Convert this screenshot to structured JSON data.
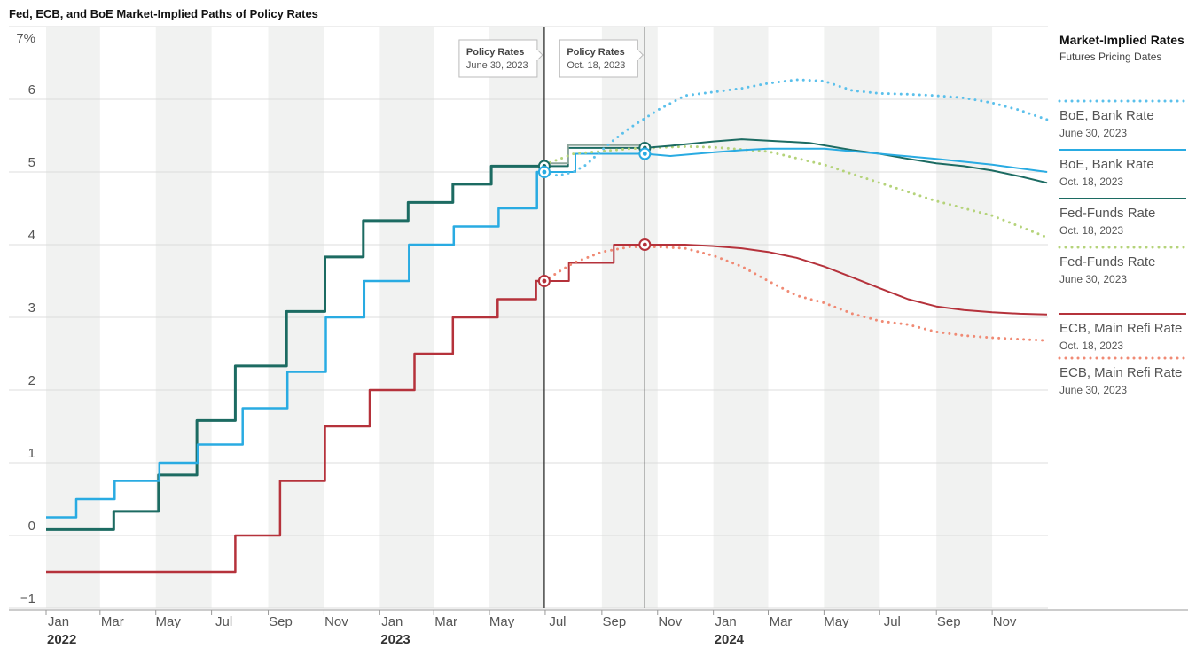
{
  "chart_data": {
    "type": "line",
    "title": "Fed, ECB, and BoE Market-Implied Paths of Policy Rates",
    "y_ticks": [
      "7%",
      "6",
      "5",
      "4",
      "3",
      "2",
      "1",
      "0",
      "−1"
    ],
    "y_values": [
      7,
      6,
      5,
      4,
      3,
      2,
      1,
      0,
      -1
    ],
    "ylim": [
      -1,
      7
    ],
    "x_month_labels": [
      "Jan",
      "Mar",
      "May",
      "Jul",
      "Sep",
      "Nov",
      "Jan",
      "Mar",
      "May",
      "Jul",
      "Sep",
      "Nov",
      "Jan",
      "Mar",
      "May",
      "Jul",
      "Sep",
      "Nov"
    ],
    "x_month_positions": [
      "2022-01",
      "2022-03",
      "2022-05",
      "2022-07",
      "2022-09",
      "2022-11",
      "2023-01",
      "2023-03",
      "2023-05",
      "2023-07",
      "2023-09",
      "2023-11",
      "2024-01",
      "2024-03",
      "2024-05",
      "2024-07",
      "2024-09",
      "2024-11"
    ],
    "x_year_labels": [
      "2022",
      "2023",
      "2024"
    ],
    "x_year_positions": [
      "2022-01",
      "2023-01",
      "2024-01"
    ],
    "xlim": [
      "2022-01",
      "2024-12"
    ],
    "annotations": [
      {
        "title": "Policy Rates",
        "date": "June 30, 2023",
        "x": "2023-06-30"
      },
      {
        "title": "Policy Rates",
        "date": "Oct. 18, 2023",
        "x": "2023-10-18"
      }
    ],
    "legend": {
      "title": "Market-Implied Rates",
      "subtitle": "Futures Pricing Dates",
      "placement": "right",
      "entries": [
        {
          "name": "BoE, Bank Rate",
          "date": "June 30, 2023",
          "color": "#5bc0eb",
          "dotted": true
        },
        {
          "name": "BoE, Bank Rate",
          "date": "Oct. 18, 2023",
          "color": "#29abe2",
          "dotted": false
        },
        {
          "name": "Fed-Funds Rate",
          "date": "Oct. 18, 2023",
          "color": "#1c6b62",
          "dotted": false
        },
        {
          "name": "Fed-Funds Rate",
          "date": "June 30, 2023",
          "color": "#b5d37a",
          "dotted": true
        },
        {
          "name": "ECB, Main Refi Rate",
          "date": "Oct. 18, 2023",
          "color": "#b5323b",
          "dotted": false
        },
        {
          "name": "ECB, Main Refi Rate",
          "date": "June 30, 2023",
          "color": "#f08a74",
          "dotted": true
        }
      ]
    },
    "series": [
      {
        "id": "fed_hist",
        "color": "#1c6b62",
        "width": 3,
        "dotted": false,
        "step": true,
        "x": [
          "2022-01-01",
          "2022-03-16",
          "2022-05-04",
          "2022-06-15",
          "2022-07-27",
          "2022-09-21",
          "2022-11-02",
          "2022-12-14",
          "2023-02-01",
          "2023-03-22",
          "2023-05-03",
          "2023-06-30"
        ],
        "y": [
          0.08,
          0.33,
          0.83,
          1.58,
          2.33,
          3.08,
          3.83,
          4.33,
          4.58,
          4.83,
          5.08,
          5.08
        ]
      },
      {
        "id": "boe_hist",
        "color": "#29abe2",
        "width": 2.5,
        "dotted": false,
        "step": true,
        "x": [
          "2022-01-01",
          "2022-02-03",
          "2022-03-17",
          "2022-05-05",
          "2022-06-16",
          "2022-08-04",
          "2022-09-22",
          "2022-11-03",
          "2022-12-15",
          "2023-02-02",
          "2023-03-23",
          "2023-05-11",
          "2023-06-22",
          "2023-06-30"
        ],
        "y": [
          0.25,
          0.5,
          0.75,
          1.0,
          1.25,
          1.75,
          2.25,
          3.0,
          3.5,
          4.0,
          4.25,
          4.5,
          5.0,
          5.0
        ]
      },
      {
        "id": "ecb_hist",
        "color": "#b5323b",
        "width": 2.5,
        "dotted": false,
        "step": true,
        "x": [
          "2022-01-01",
          "2022-07-27",
          "2022-09-14",
          "2022-11-02",
          "2022-12-21",
          "2023-02-08",
          "2023-03-22",
          "2023-05-10",
          "2023-06-21",
          "2023-06-30"
        ],
        "y": [
          -0.5,
          0.0,
          0.75,
          1.5,
          2.0,
          2.5,
          3.0,
          3.25,
          3.5,
          3.5
        ]
      },
      {
        "id": "fed_oct_hist",
        "color": "#1c6b62",
        "width": 2,
        "dotted": false,
        "step": true,
        "x": [
          "2023-06-30",
          "2023-07-26",
          "2023-10-18"
        ],
        "y": [
          5.08,
          5.33,
          5.33
        ]
      },
      {
        "id": "fed_gray",
        "color": "#8ea69c",
        "width": 2,
        "dotted": false,
        "step": true,
        "x": [
          "2023-06-30",
          "2023-07-26",
          "2023-10-18"
        ],
        "y": [
          5.12,
          5.37,
          5.37
        ]
      },
      {
        "id": "boe_oct_hist",
        "color": "#29abe2",
        "width": 2,
        "dotted": false,
        "step": true,
        "x": [
          "2023-06-30",
          "2023-08-03",
          "2023-10-18"
        ],
        "y": [
          5.0,
          5.25,
          5.25
        ]
      },
      {
        "id": "ecb_oct_hist",
        "color": "#b5323b",
        "width": 2,
        "dotted": false,
        "step": true,
        "x": [
          "2023-06-30",
          "2023-07-27",
          "2023-09-14",
          "2023-10-18"
        ],
        "y": [
          3.5,
          3.75,
          4.0,
          4.0
        ]
      },
      {
        "id": "boe_jun",
        "color": "#5bc0eb",
        "width": 3,
        "dotted": true,
        "step": false,
        "x": [
          "2023-06-30",
          "2023-07-15",
          "2023-08-01",
          "2023-08-15",
          "2023-09-01",
          "2023-09-15",
          "2023-10-01",
          "2023-11-01",
          "2023-12-01",
          "2024-01-01",
          "2024-02-01",
          "2024-03-01",
          "2024-04-01",
          "2024-05-01",
          "2024-06-01",
          "2024-07-01",
          "2024-08-01",
          "2024-09-01",
          "2024-10-01",
          "2024-11-01",
          "2024-12-01",
          "2024-12-31"
        ],
        "y": [
          5.0,
          4.95,
          5.0,
          5.1,
          5.3,
          5.45,
          5.6,
          5.85,
          6.05,
          6.1,
          6.15,
          6.22,
          6.27,
          6.25,
          6.12,
          6.08,
          6.07,
          6.05,
          6.02,
          5.95,
          5.85,
          5.72
        ]
      },
      {
        "id": "fed_jun",
        "color": "#b5d37a",
        "width": 3,
        "dotted": true,
        "step": false,
        "x": [
          "2023-06-30",
          "2023-08-01",
          "2023-10-01",
          "2023-12-01",
          "2024-01-01",
          "2024-03-01",
          "2024-05-01",
          "2024-07-01",
          "2024-09-01",
          "2024-11-01",
          "2024-12-31"
        ],
        "y": [
          5.1,
          5.25,
          5.32,
          5.35,
          5.34,
          5.28,
          5.1,
          4.85,
          4.6,
          4.4,
          4.1
        ]
      },
      {
        "id": "ecb_jun",
        "color": "#f08a74",
        "width": 3,
        "dotted": true,
        "step": false,
        "x": [
          "2023-06-30",
          "2023-07-15",
          "2023-08-01",
          "2023-09-01",
          "2023-10-01",
          "2023-11-01",
          "2023-12-01",
          "2024-01-01",
          "2024-02-01",
          "2024-03-01",
          "2024-04-01",
          "2024-05-01",
          "2024-06-01",
          "2024-07-01",
          "2024-08-01",
          "2024-09-01",
          "2024-10-01",
          "2024-11-01",
          "2024-12-01",
          "2024-12-31"
        ],
        "y": [
          3.5,
          3.62,
          3.75,
          3.9,
          3.97,
          3.97,
          3.95,
          3.85,
          3.7,
          3.5,
          3.3,
          3.2,
          3.05,
          2.95,
          2.9,
          2.8,
          2.75,
          2.72,
          2.7,
          2.68
        ]
      },
      {
        "id": "fed_oct",
        "color": "#1c6b62",
        "width": 2,
        "dotted": false,
        "step": false,
        "x": [
          "2023-10-18",
          "2023-11-15",
          "2024-01-01",
          "2024-02-01",
          "2024-03-01",
          "2024-04-15",
          "2024-06-01",
          "2024-07-01",
          "2024-08-01",
          "2024-09-01",
          "2024-10-01",
          "2024-11-01",
          "2024-12-01",
          "2024-12-31"
        ],
        "y": [
          5.33,
          5.36,
          5.42,
          5.45,
          5.43,
          5.4,
          5.3,
          5.25,
          5.18,
          5.12,
          5.08,
          5.02,
          4.94,
          4.85
        ]
      },
      {
        "id": "boe_oct",
        "color": "#29abe2",
        "width": 2,
        "dotted": false,
        "step": false,
        "x": [
          "2023-10-18",
          "2023-11-15",
          "2024-01-01",
          "2024-02-01",
          "2024-03-01",
          "2024-05-01",
          "2024-07-01",
          "2024-09-01",
          "2024-11-01",
          "2024-12-31"
        ],
        "y": [
          5.25,
          5.22,
          5.27,
          5.3,
          5.32,
          5.32,
          5.25,
          5.18,
          5.1,
          5.0
        ]
      },
      {
        "id": "ecb_oct",
        "color": "#b5323b",
        "width": 2,
        "dotted": false,
        "step": false,
        "x": [
          "2023-10-18",
          "2023-11-15",
          "2023-12-01",
          "2024-01-01",
          "2024-02-01",
          "2024-03-01",
          "2024-04-01",
          "2024-05-01",
          "2024-06-01",
          "2024-07-01",
          "2024-08-01",
          "2024-09-01",
          "2024-10-01",
          "2024-11-01",
          "2024-12-01",
          "2024-12-31"
        ],
        "y": [
          4.0,
          4.0,
          4.0,
          3.98,
          3.95,
          3.9,
          3.82,
          3.7,
          3.55,
          3.4,
          3.25,
          3.15,
          3.1,
          3.07,
          3.05,
          3.04
        ]
      }
    ],
    "markers": [
      {
        "x": "2023-06-30",
        "y": 5.08,
        "color": "#1c6b62"
      },
      {
        "x": "2023-06-30",
        "y": 5.0,
        "color": "#29abe2"
      },
      {
        "x": "2023-06-30",
        "y": 3.5,
        "color": "#b5323b"
      },
      {
        "x": "2023-10-18",
        "y": 5.33,
        "color": "#1c6b62"
      },
      {
        "x": "2023-10-18",
        "y": 5.25,
        "color": "#29abe2"
      },
      {
        "x": "2023-10-18",
        "y": 4.0,
        "color": "#b5323b"
      }
    ],
    "grid": true
  }
}
